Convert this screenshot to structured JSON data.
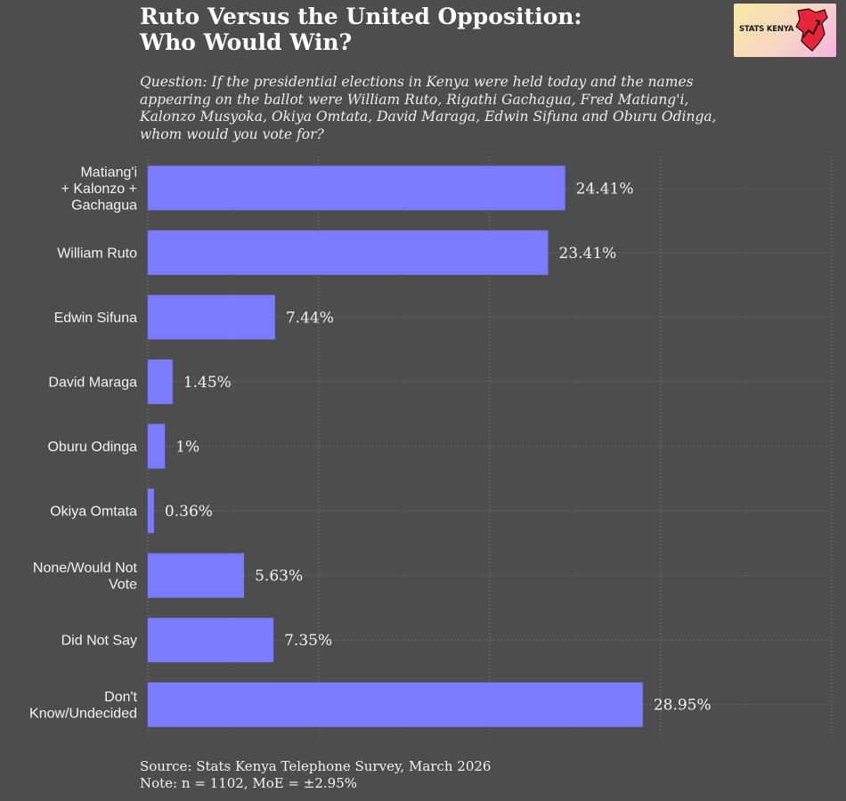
{
  "header": {
    "title_line1": "Ruto Versus the United Opposition:",
    "title_line2": "Who Would Win?",
    "subtitle_line1": "Question: If the presidential elections in Kenya were held today and the names",
    "subtitle_line2": "appearing on the ballot were William Ruto, Rigathi Gachagua, Fred Matiang'i,",
    "subtitle_line3": "Kalonzo Musyoka, Okiya Omtata, David Maraga, Edwin Sifuna and Oburu Odinga,",
    "subtitle_line4": "whom would you vote for?"
  },
  "logo": {
    "text": "STATS KENYA",
    "icon": "kenya-map-chart-icon"
  },
  "footer": {
    "source": "Source: Stats Kenya Telephone Survey, March 2026",
    "note": "Note: n = 1102, MoE = ±2.95%"
  },
  "colors": {
    "background": "#4d4d4d",
    "bar": "#7b7bff",
    "grid": "#6e6e6e",
    "text": "#f2f2f2"
  },
  "chart_data": {
    "type": "bar",
    "orientation": "horizontal",
    "title": "Ruto Versus the United Opposition: Who Would Win?",
    "xlabel": "",
    "ylabel": "",
    "xlim": [
      0,
      40
    ],
    "grid": true,
    "categories": [
      [
        "Matiang'i",
        "+ Kalonzo +",
        "Gachagua"
      ],
      [
        "William Ruto"
      ],
      [
        "Edwin Sifuna"
      ],
      [
        "David Maraga"
      ],
      [
        "Oburu Odinga"
      ],
      [
        "Okiya Omtata"
      ],
      [
        "None/Would Not",
        "Vote"
      ],
      [
        "Did Not Say"
      ],
      [
        "Don't",
        "Know/Undecided"
      ]
    ],
    "values": [
      24.41,
      23.41,
      7.44,
      1.45,
      1,
      0.36,
      5.63,
      7.35,
      28.95
    ],
    "value_labels": [
      "24.41%",
      "23.41%",
      "7.44%",
      "1.45%",
      "1%",
      "0.36%",
      "5.63%",
      "7.35%",
      "28.95%"
    ]
  }
}
